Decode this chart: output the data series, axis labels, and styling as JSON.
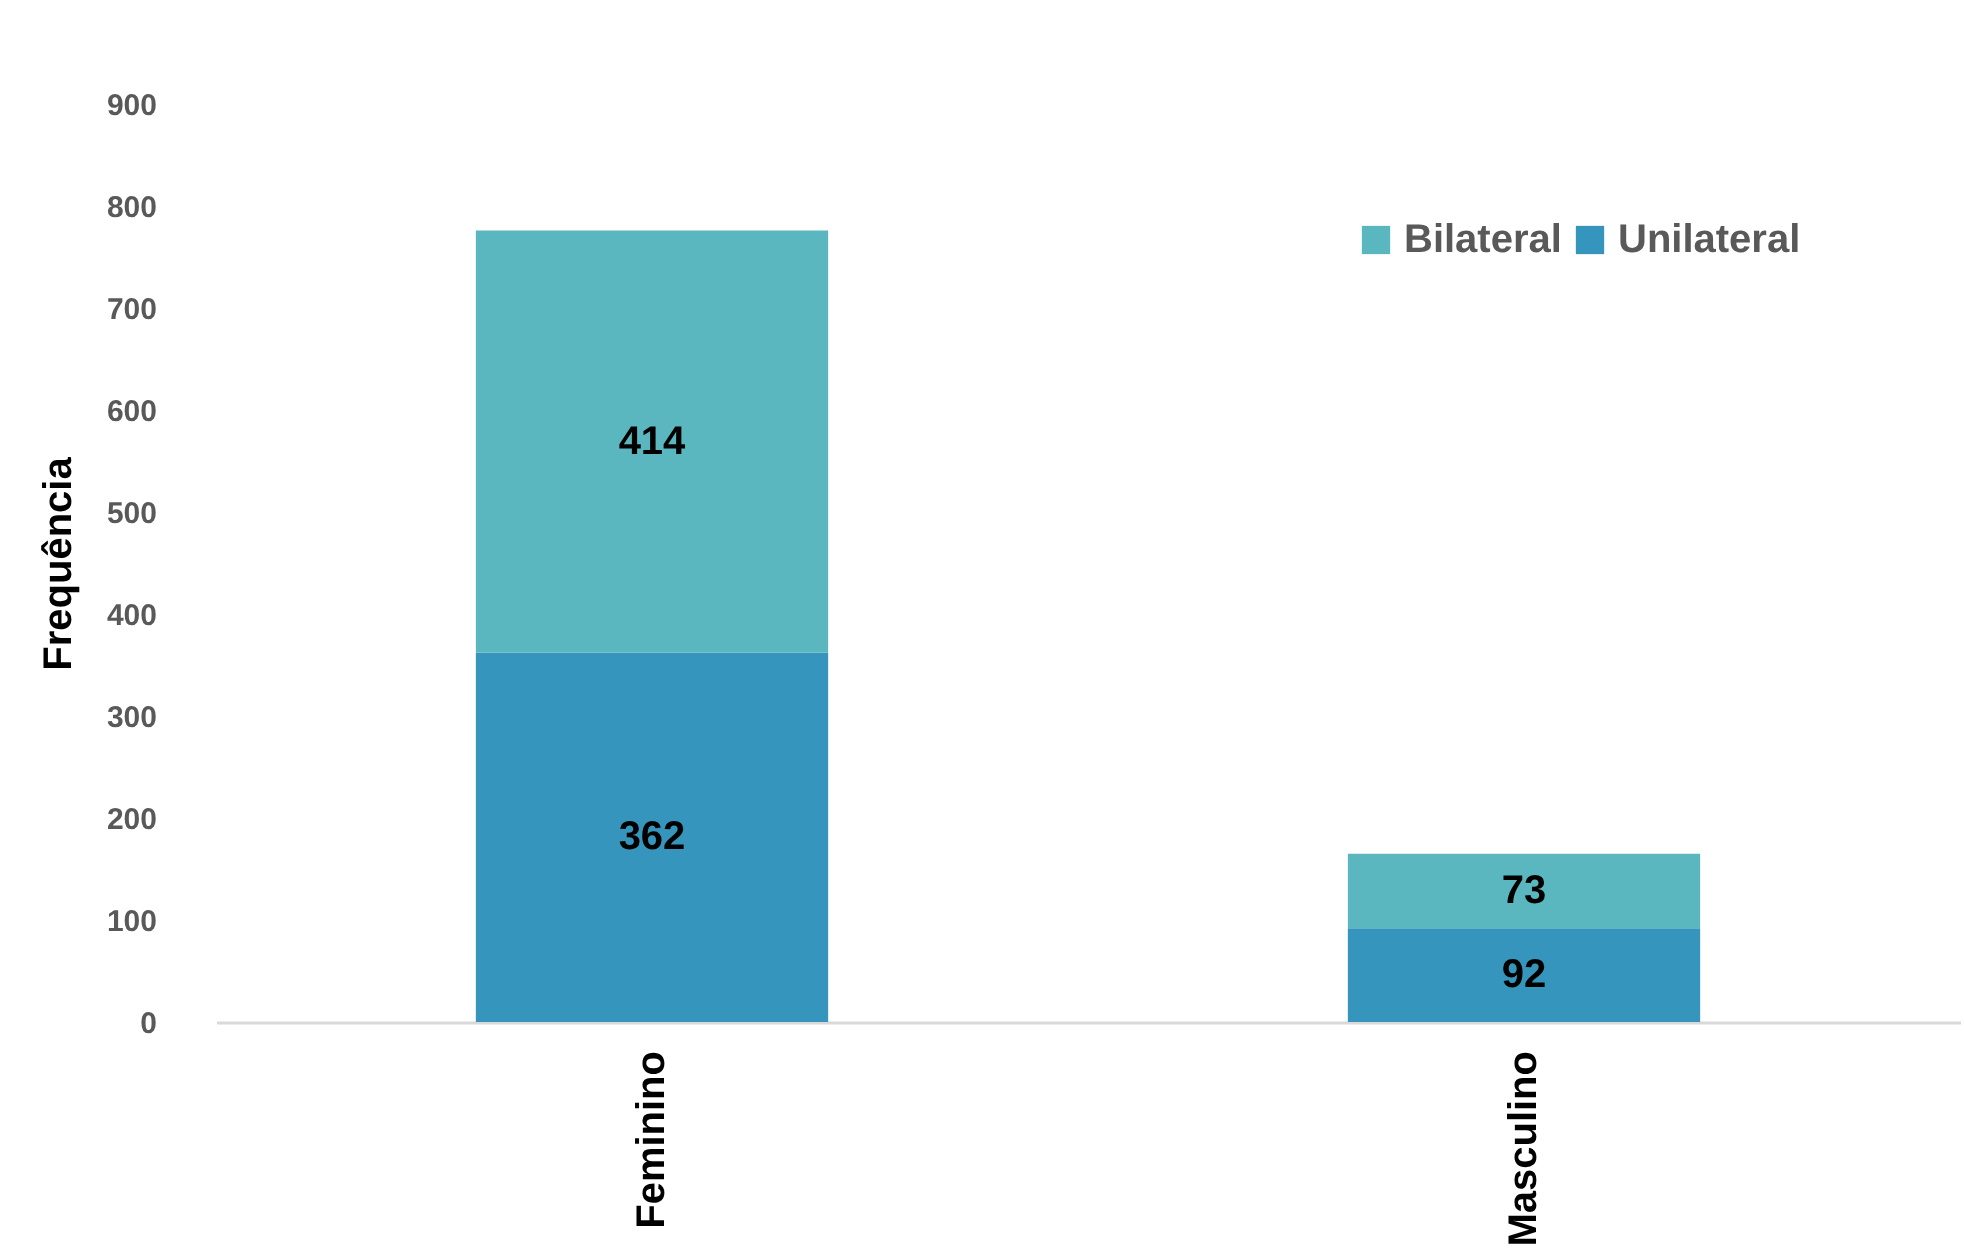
{
  "chart_data": {
    "type": "bar",
    "stacked": true,
    "ylabel": "Frequência",
    "categories": [
      "Feminino",
      "Masculino"
    ],
    "series": [
      {
        "name": "Unilateral",
        "color": "#3695bd",
        "values": [
          362,
          92
        ]
      },
      {
        "name": "Bilateral",
        "color": "#5bb7bf",
        "values": [
          414,
          73
        ]
      }
    ],
    "ylim": [
      0,
      900
    ],
    "yticks": [
      0,
      100,
      200,
      300,
      400,
      500,
      600,
      700,
      800,
      900
    ],
    "grid": false,
    "legend": "top right",
    "data_labels": true
  }
}
